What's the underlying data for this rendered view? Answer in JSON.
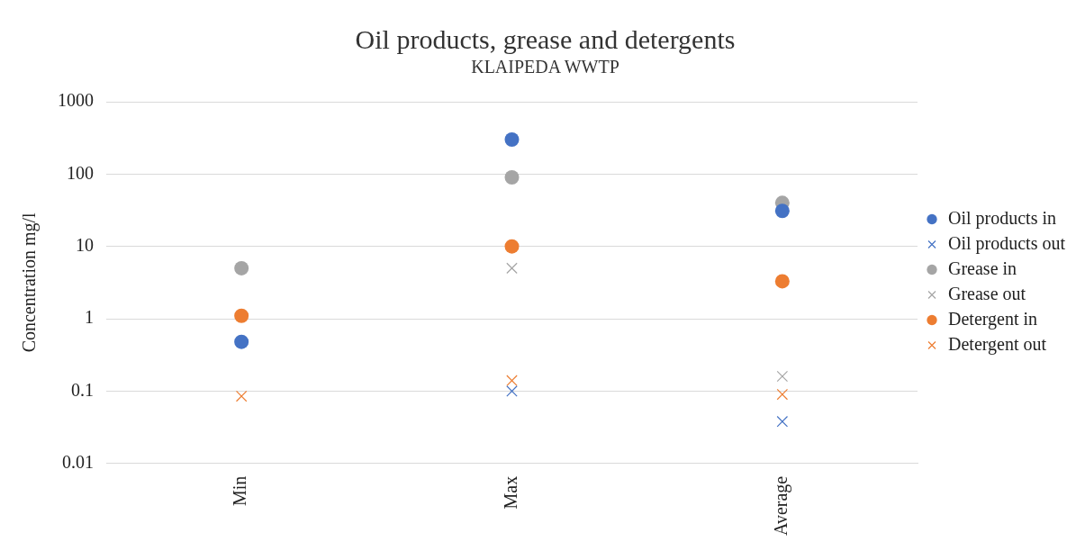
{
  "chart_data": {
    "type": "scatter",
    "title": "Oil products, grease and detergents",
    "subtitle": "KLAIPEDA WWTP",
    "ylabel": "Concentration mg/l",
    "categories": [
      "Min",
      "Max",
      "Average"
    ],
    "series": [
      {
        "name": "Oil products in",
        "color": "#4472c4",
        "marker": "circle",
        "values": [
          0.48,
          300,
          31
        ]
      },
      {
        "name": "Oil products out",
        "color": "#4472c4",
        "marker": "cross",
        "values": [
          null,
          0.1,
          0.038
        ]
      },
      {
        "name": "Grease in",
        "color": "#a5a5a5",
        "marker": "circle",
        "values": [
          5,
          90,
          40
        ]
      },
      {
        "name": "Grease out",
        "color": "#a5a5a5",
        "marker": "cross",
        "values": [
          null,
          5,
          0.16
        ]
      },
      {
        "name": "Detergent in",
        "color": "#ed7d31",
        "marker": "circle",
        "values": [
          1.1,
          10,
          3.3
        ]
      },
      {
        "name": "Detergent out",
        "color": "#ed7d31",
        "marker": "cross",
        "values": [
          0.085,
          0.14,
          0.09
        ]
      }
    ],
    "log": "y",
    "ylim": [
      0.01,
      1000
    ],
    "yticks": [
      0.01,
      0.1,
      1,
      10,
      100,
      1000
    ],
    "grid": "y",
    "legend": "right"
  }
}
